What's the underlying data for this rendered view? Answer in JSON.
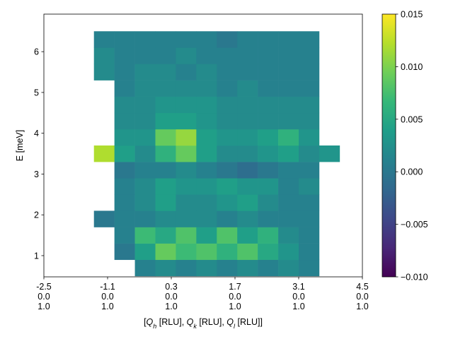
{
  "chart_data": {
    "type": "heatmap",
    "y_label": "E [meV]",
    "x_label": [
      {
        "text": "[",
        "style": "normal"
      },
      {
        "text": "Q",
        "style": "italic"
      },
      {
        "text": "h",
        "style": "sub"
      },
      {
        "text": " [RLU], ",
        "style": "normal"
      },
      {
        "text": "Q",
        "style": "italic"
      },
      {
        "text": "k",
        "style": "sub"
      },
      {
        "text": " [RLU], ",
        "style": "normal"
      },
      {
        "text": "Q",
        "style": "italic"
      },
      {
        "text": "l",
        "style": "sub"
      },
      {
        "text": " [RLU]]",
        "style": "normal"
      }
    ],
    "xlim": [
      -2.5,
      4.5
    ],
    "xticks": [
      {
        "value": -2.5,
        "label": [
          "-2.5",
          "0.0",
          "1.0"
        ]
      },
      {
        "value": -1.1,
        "label": [
          "-1.1",
          "0.0",
          "1.0"
        ]
      },
      {
        "value": 0.3,
        "label": [
          "0.3",
          "0.0",
          "1.0"
        ]
      },
      {
        "value": 1.7,
        "label": [
          "1.7",
          "0.0",
          "1.0"
        ]
      },
      {
        "value": 3.1,
        "label": [
          "3.1",
          "0.0",
          "1.0"
        ]
      },
      {
        "value": 4.5,
        "label": [
          "4.5",
          "0.0",
          "1.0"
        ]
      }
    ],
    "ylim": [
      0.48,
      6.92
    ],
    "yticks": [
      1,
      2,
      3,
      4,
      5,
      6
    ],
    "colormap": "viridis",
    "clim": [
      -0.01,
      0.015
    ],
    "cticks": [
      {
        "value": -0.01,
        "label": "−0.010"
      },
      {
        "value": -0.005,
        "label": "−0.005"
      },
      {
        "value": 0,
        "label": "0.000"
      },
      0.005,
      {
        "value": 0.01,
        "label": "0.010"
      },
      0.015
    ],
    "x_edges": [
      -1.4,
      -0.95,
      -0.5,
      -0.05,
      0.4,
      0.85,
      1.3,
      1.75,
      2.2,
      2.65,
      3.1,
      3.55,
      4.0
    ],
    "y_edges": [
      0.5,
      0.9,
      1.3,
      1.7,
      2.1,
      2.5,
      2.9,
      3.3,
      3.7,
      4.1,
      4.5,
      4.9,
      5.3,
      5.7,
      6.1,
      6.5
    ],
    "z": [
      [
        null,
        null,
        0.001,
        0.002,
        0.001,
        0.002,
        0.001,
        0.002,
        0.001,
        0.002,
        0.001,
        null
      ],
      [
        null,
        0.0,
        0.004,
        0.009,
        0.007,
        0.008,
        0.006,
        0.008,
        0.005,
        0.003,
        0.001,
        null
      ],
      [
        null,
        0.001,
        0.007,
        0.005,
        0.008,
        0.004,
        0.008,
        0.004,
        0.006,
        0.002,
        0.001,
        null
      ],
      [
        0.0,
        0.001,
        0.001,
        0.002,
        0.002,
        0.002,
        0.001,
        0.002,
        0.001,
        0.001,
        0.001,
        null
      ],
      [
        null,
        0.001,
        0.002,
        0.004,
        0.002,
        0.002,
        0.003,
        0.004,
        0.002,
        0.001,
        0.001,
        null
      ],
      [
        null,
        0.001,
        0.002,
        0.004,
        0.003,
        0.003,
        0.004,
        0.003,
        0.003,
        0.001,
        0.002,
        null
      ],
      [
        null,
        0.0,
        0.001,
        0.001,
        0.002,
        0.001,
        0.0,
        -0.001,
        0.0,
        0.001,
        0.001,
        null
      ],
      [
        0.012,
        0.004,
        0.002,
        0.006,
        0.009,
        0.004,
        0.002,
        0.002,
        0.003,
        0.004,
        0.002,
        0.003
      ],
      [
        null,
        0.003,
        0.003,
        0.009,
        0.011,
        0.004,
        0.003,
        0.003,
        0.004,
        0.006,
        0.003,
        null
      ],
      [
        null,
        0.002,
        0.002,
        0.004,
        0.004,
        0.003,
        0.002,
        0.002,
        0.002,
        0.002,
        0.002,
        null
      ],
      [
        null,
        0.002,
        0.002,
        0.003,
        0.003,
        0.003,
        0.002,
        0.002,
        0.002,
        0.002,
        0.002,
        null
      ],
      [
        null,
        0.001,
        0.002,
        0.002,
        0.002,
        0.002,
        0.001,
        0.002,
        0.001,
        0.001,
        0.001,
        null
      ],
      [
        0.002,
        0.001,
        0.002,
        0.002,
        0.001,
        0.002,
        0.001,
        0.001,
        0.001,
        0.001,
        0.001,
        null
      ],
      [
        0.002,
        0.001,
        0.001,
        0.001,
        0.002,
        0.001,
        0.001,
        0.001,
        0.001,
        0.001,
        0.001,
        null
      ],
      [
        0.001,
        0.001,
        0.001,
        0.001,
        0.001,
        0.001,
        0.0,
        0.001,
        0.001,
        0.001,
        0.001,
        null
      ]
    ]
  }
}
